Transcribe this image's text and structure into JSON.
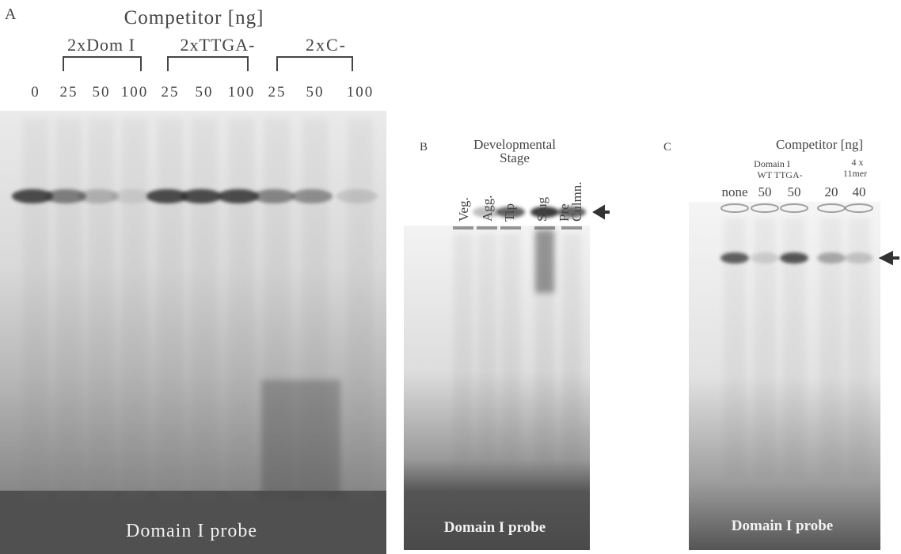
{
  "panel_a": {
    "label": "A",
    "title": "Competitor [ng]",
    "groups": [
      "2xDom I",
      "2xTTGA-",
      "2xC-"
    ],
    "lanes": [
      "0",
      "25",
      "50",
      "100",
      "25",
      "50",
      "100",
      "25",
      "50",
      "100"
    ],
    "probe": "Domain I probe"
  },
  "panel_b": {
    "label": "B",
    "title": [
      "Developmental",
      "Stage"
    ],
    "lanes": [
      "Veg.",
      "Agg.",
      "Tip",
      "Slug",
      "Pre",
      "Culmn."
    ],
    "probe": "Domain I probe"
  },
  "panel_c": {
    "label": "C",
    "title": "Competitor [ng]",
    "groups": [
      "Domain I",
      "WT TTGA-",
      "4 x",
      "11mer"
    ],
    "lanes": [
      "none",
      "50",
      "50",
      "20",
      "40"
    ],
    "probe": "Domain I probe"
  }
}
